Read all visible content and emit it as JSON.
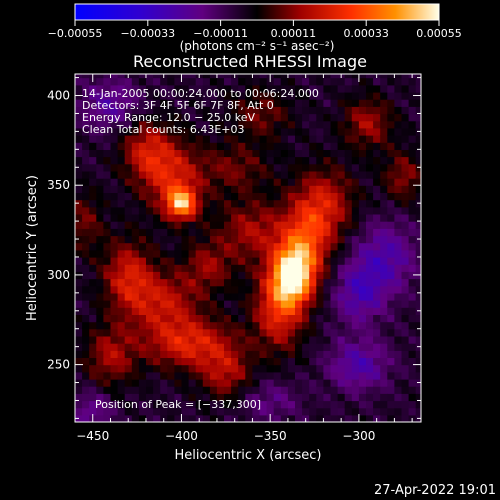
{
  "chart_data": {
    "type": "heatmap",
    "title": "Reconstructed RHESSI Image",
    "xlabel": "Heliocentric X (arcsec)",
    "ylabel": "Heliocentric Y (arcsec)",
    "xlim": [
      -460,
      -265
    ],
    "ylim": [
      218,
      412
    ],
    "x_ticks": [
      -450,
      -400,
      -350,
      -300
    ],
    "y_ticks": [
      250,
      300,
      350,
      400
    ],
    "x_tick_labels": [
      "−450",
      "−400",
      "−350",
      "−300"
    ],
    "y_tick_labels": [
      "250",
      "300",
      "350",
      "400"
    ],
    "colorbar": {
      "range": [
        -0.00055,
        0.00055
      ],
      "ticks": [
        -0.00055,
        -0.00033,
        -0.00011,
        0.00011,
        0.00033,
        0.00055
      ],
      "tick_labels": [
        "−0.00055",
        "−0.00033",
        "−0.00011",
        "0.00011",
        "0.00033",
        "0.00055"
      ],
      "unit_label": "(photons cm⁻² s⁻¹ asec⁻²)",
      "colors": [
        "#0000ff",
        "#4010c0",
        "#600070",
        "#000000",
        "#a00000",
        "#ff3000",
        "#ff9000",
        "#ffffe8"
      ]
    },
    "annotations": [
      "14-Jan-2005 00:00:24.000 to 00:06:24.000",
      "Detectors: 3F 4F 5F 6F 7F 8F, Att 0",
      "Energy Range: 12.0 − 25.0 keV",
      "Clean     Total counts: 6.43E+03"
    ],
    "peak_label": "Position of Peak = [−337,300]",
    "peak": [
      -337,
      300
    ],
    "emission_sources": [
      {
        "x": -337,
        "y": 300,
        "sx": 8,
        "sy": 11,
        "amp": 1.0
      },
      {
        "x": -345,
        "y": 282,
        "sx": 10,
        "sy": 16,
        "amp": 0.55
      },
      {
        "x": -330,
        "y": 318,
        "sx": 10,
        "sy": 14,
        "amp": 0.5
      },
      {
        "x": -320,
        "y": 340,
        "sx": 12,
        "sy": 14,
        "amp": 0.45
      },
      {
        "x": -360,
        "y": 325,
        "sx": 14,
        "sy": 12,
        "amp": 0.35
      },
      {
        "x": -400,
        "y": 340,
        "sx": 6,
        "sy": 6,
        "amp": 0.8
      },
      {
        "x": -405,
        "y": 355,
        "sx": 12,
        "sy": 14,
        "amp": 0.45
      },
      {
        "x": -420,
        "y": 370,
        "sx": 10,
        "sy": 12,
        "amp": 0.4
      },
      {
        "x": -430,
        "y": 300,
        "sx": 10,
        "sy": 14,
        "amp": 0.45
      },
      {
        "x": -410,
        "y": 285,
        "sx": 14,
        "sy": 12,
        "amp": 0.4
      },
      {
        "x": -395,
        "y": 262,
        "sx": 18,
        "sy": 10,
        "amp": 0.5
      },
      {
        "x": -440,
        "y": 255,
        "sx": 10,
        "sy": 12,
        "amp": 0.35
      },
      {
        "x": -375,
        "y": 245,
        "sx": 10,
        "sy": 10,
        "amp": 0.35
      },
      {
        "x": -385,
        "y": 305,
        "sx": 10,
        "sy": 10,
        "amp": 0.3
      },
      {
        "x": -370,
        "y": 360,
        "sx": 14,
        "sy": 10,
        "amp": 0.25
      },
      {
        "x": -355,
        "y": 390,
        "sx": 12,
        "sy": 10,
        "amp": 0.25
      },
      {
        "x": -295,
        "y": 385,
        "sx": 10,
        "sy": 10,
        "amp": 0.35
      },
      {
        "x": -275,
        "y": 355,
        "sx": 8,
        "sy": 10,
        "amp": 0.3
      },
      {
        "x": -455,
        "y": 330,
        "sx": 8,
        "sy": 12,
        "amp": 0.25
      },
      {
        "x": -300,
        "y": 250,
        "sx": 12,
        "sy": 10,
        "amp": -0.35
      },
      {
        "x": -285,
        "y": 310,
        "sx": 12,
        "sy": 14,
        "amp": -0.35
      },
      {
        "x": -440,
        "y": 395,
        "sx": 12,
        "sy": 10,
        "amp": -0.3
      },
      {
        "x": -450,
        "y": 225,
        "sx": 8,
        "sy": 8,
        "amp": -0.25
      },
      {
        "x": -350,
        "y": 230,
        "sx": 12,
        "sy": 8,
        "amp": -0.2
      },
      {
        "x": -300,
        "y": 290,
        "sx": 10,
        "sy": 12,
        "amp": -0.35
      }
    ]
  },
  "footer": {
    "date": "27-Apr-2022 19:01"
  }
}
